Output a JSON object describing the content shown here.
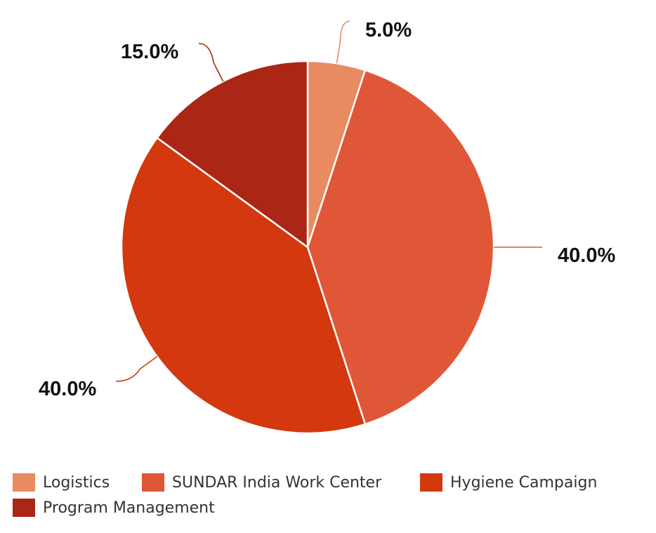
{
  "chart_data": {
    "type": "pie",
    "slices": [
      {
        "label": "Logistics",
        "value": 5.0,
        "display": "5.0%",
        "color": "#E98B61"
      },
      {
        "label": "SUNDAR India Work Center",
        "value": 40.0,
        "display": "40.0%",
        "color": "#E05738"
      },
      {
        "label": "Hygiene Campaign",
        "value": 40.0,
        "display": "40.0%",
        "color": "#D3380E"
      },
      {
        "label": "Program Management",
        "value": 15.0,
        "display": "15.0%",
        "color": "#AC2615"
      }
    ],
    "start_angle_deg": 0,
    "direction": "clockwise",
    "legend_position": "bottom"
  }
}
